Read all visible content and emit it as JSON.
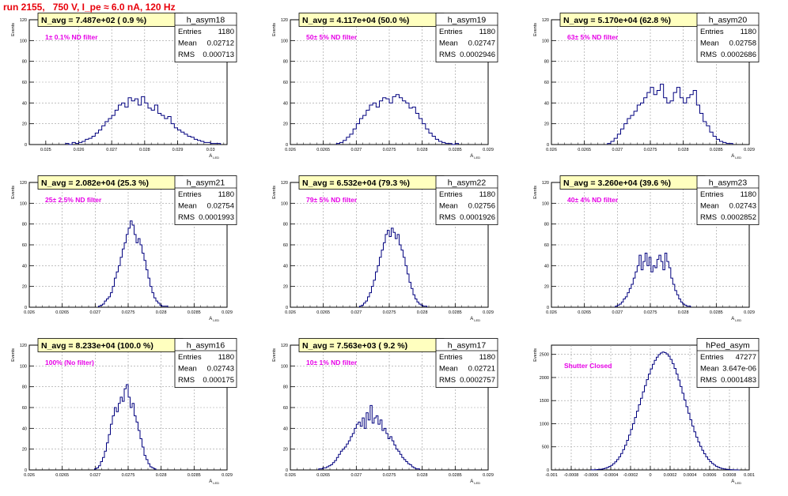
{
  "run_title": "run 2155,   750 V, I_pe ≈ 6.0 nA, 120 Hz",
  "chart_data": [
    {
      "type": "histogram",
      "name": "h_asym18",
      "navg": "N_avg = 7.487e+02 ( 0.9 %)",
      "filter": "1± 0.1% ND filter",
      "stats": {
        "entries": "1180",
        "mean": "0.02712",
        "rms": "0.000713"
      },
      "xlim": [
        0.0245,
        0.0305
      ],
      "ylim": [
        0,
        120
      ],
      "xticks": [
        0.025,
        0.026,
        0.027,
        0.028,
        0.029,
        0.03
      ],
      "xticklabels": [
        "0.025",
        "0.026",
        "0.027",
        "0.028",
        "0.029",
        "0.03"
      ],
      "yticks": [
        0,
        20,
        40,
        60,
        80,
        100,
        120
      ],
      "xlabel": "A_LED",
      "ylabel": "Events",
      "bins": {
        "start": 0.0256,
        "width": 0.0001,
        "counts": [
          1,
          0,
          2,
          1,
          2,
          3,
          5,
          6,
          8,
          11,
          14,
          18,
          22,
          25,
          28,
          33,
          38,
          40,
          36,
          45,
          42,
          44,
          38,
          46,
          40,
          35,
          33,
          38,
          30,
          28,
          25,
          27,
          20,
          16,
          14,
          12,
          10,
          8,
          7,
          5,
          4,
          3,
          2,
          2,
          1,
          1,
          1
        ]
      }
    },
    {
      "type": "histogram",
      "name": "h_asym19",
      "navg": "N_avg = 4.117e+04 (50.0 %)",
      "filter": "50± 5% ND filter",
      "stats": {
        "entries": "1180",
        "mean": "0.02747",
        "rms": "0.0002946"
      },
      "xlim": [
        0.026,
        0.029
      ],
      "ylim": [
        0,
        120
      ],
      "xticks": [
        0.026,
        0.0265,
        0.027,
        0.0275,
        0.028,
        0.0285,
        0.029
      ],
      "xticklabels": [
        "0.026",
        "0.0265",
        "0.027",
        "0.0275",
        "0.028",
        "0.0285",
        "0.029"
      ],
      "yticks": [
        0,
        20,
        40,
        60,
        80,
        100,
        120
      ],
      "xlabel": "A_LED",
      "ylabel": "Events",
      "bins": {
        "start": 0.0267,
        "width": 5e-05,
        "counts": [
          1,
          2,
          4,
          7,
          10,
          15,
          20,
          25,
          28,
          33,
          38,
          40,
          36,
          42,
          45,
          44,
          40,
          46,
          48,
          45,
          42,
          40,
          35,
          36,
          30,
          25,
          20,
          15,
          11,
          8,
          5,
          3,
          2,
          1,
          1,
          0,
          1
        ]
      }
    },
    {
      "type": "histogram",
      "name": "h_asym20",
      "navg": "N_avg = 5.170e+04 (62.8 %)",
      "filter": "63± 5% ND filter",
      "stats": {
        "entries": "1180",
        "mean": "0.02758",
        "rms": "0.0002686"
      },
      "xlim": [
        0.026,
        0.029
      ],
      "ylim": [
        0,
        120
      ],
      "xticks": [
        0.026,
        0.0265,
        0.027,
        0.0275,
        0.028,
        0.0285,
        0.029
      ],
      "xticklabels": [
        "0.026",
        "0.0265",
        "0.027",
        "0.0275",
        "0.028",
        "0.0285",
        "0.029"
      ],
      "yticks": [
        0,
        20,
        40,
        60,
        80,
        100,
        120
      ],
      "xlabel": "A_LED",
      "ylabel": "Events",
      "bins": {
        "start": 0.02685,
        "width": 5e-05,
        "counts": [
          1,
          3,
          6,
          10,
          15,
          20,
          25,
          28,
          32,
          38,
          40,
          45,
          50,
          55,
          48,
          52,
          58,
          45,
          40,
          42,
          50,
          55,
          45,
          40,
          45,
          48,
          52,
          38,
          30,
          22,
          18,
          12,
          8,
          5,
          3,
          2,
          1,
          1
        ]
      }
    },
    {
      "type": "histogram",
      "name": "h_asym21",
      "navg": "N_avg = 2.082e+04 (25.3 %)",
      "filter": "25± 2.5% ND filter",
      "stats": {
        "entries": "1180",
        "mean": "0.02754",
        "rms": "0.0001993"
      },
      "xlim": [
        0.026,
        0.029
      ],
      "ylim": [
        0,
        120
      ],
      "xticks": [
        0.026,
        0.0265,
        0.027,
        0.0275,
        0.028,
        0.0285,
        0.029
      ],
      "xticklabels": [
        "0.026",
        "0.0265",
        "0.027",
        "0.0275",
        "0.028",
        "0.0285",
        "0.029"
      ],
      "yticks": [
        0,
        20,
        40,
        60,
        80,
        100,
        120
      ],
      "xlabel": "A_LED",
      "ylabel": "Events",
      "bins": {
        "start": 0.02705,
        "width": 3e-05,
        "counts": [
          1,
          2,
          3,
          6,
          8,
          10,
          14,
          20,
          28,
          34,
          40,
          48,
          56,
          62,
          70,
          76,
          83,
          79,
          70,
          62,
          66,
          60,
          52,
          45,
          36,
          28,
          20,
          14,
          9,
          6,
          4,
          2,
          1,
          1,
          1
        ]
      }
    },
    {
      "type": "histogram",
      "name": "h_asym22",
      "navg": "N_avg = 6.532e+04 (79.3 %)",
      "filter": "79± 5% ND filter",
      "stats": {
        "entries": "1180",
        "mean": "0.02756",
        "rms": "0.0001926"
      },
      "xlim": [
        0.026,
        0.029
      ],
      "ylim": [
        0,
        120
      ],
      "xticks": [
        0.026,
        0.0265,
        0.027,
        0.0275,
        0.028,
        0.0285,
        0.029
      ],
      "xticklabels": [
        "0.026",
        "0.0265",
        "0.027",
        "0.0275",
        "0.028",
        "0.0285",
        "0.029"
      ],
      "yticks": [
        0,
        20,
        40,
        60,
        80,
        100,
        120
      ],
      "xlabel": "A_LED",
      "ylabel": "Events",
      "bins": {
        "start": 0.02705,
        "width": 3e-05,
        "counts": [
          1,
          2,
          4,
          6,
          10,
          14,
          20,
          26,
          34,
          40,
          48,
          55,
          62,
          70,
          74,
          68,
          76,
          72,
          66,
          70,
          60,
          55,
          48,
          40,
          32,
          24,
          18,
          12,
          8,
          5,
          3,
          2,
          1,
          1
        ]
      }
    },
    {
      "type": "histogram",
      "name": "h_asym23",
      "navg": "N_avg = 3.260e+04 (39.6 %)",
      "filter": "40± 4% ND filter",
      "stats": {
        "entries": "1180",
        "mean": "0.02743",
        "rms": "0.0002852"
      },
      "xlim": [
        0.026,
        0.029
      ],
      "ylim": [
        0,
        120
      ],
      "xticks": [
        0.026,
        0.0265,
        0.027,
        0.0275,
        0.028,
        0.0285,
        0.029
      ],
      "xticklabels": [
        "0.026",
        "0.0265",
        "0.027",
        "0.0275",
        "0.028",
        "0.0285",
        "0.029"
      ],
      "yticks": [
        0,
        20,
        40,
        60,
        80,
        100,
        120
      ],
      "xlabel": "A_LED",
      "ylabel": "Events",
      "bins": {
        "start": 0.02697,
        "width": 3e-05,
        "counts": [
          1,
          2,
          3,
          5,
          8,
          10,
          14,
          18,
          22,
          28,
          34,
          40,
          50,
          36,
          44,
          52,
          40,
          48,
          34,
          40,
          38,
          46,
          50,
          44,
          36,
          52,
          44,
          38,
          28,
          22,
          16,
          12,
          8,
          5,
          3,
          2,
          1,
          1
        ]
      }
    },
    {
      "type": "histogram",
      "name": "h_asym16",
      "navg": "N_avg = 8.233e+04 (100.0 %)",
      "filter": "100% (No filter)",
      "stats": {
        "entries": "1180",
        "mean": "0.02743",
        "rms": "0.000175"
      },
      "xlim": [
        0.026,
        0.029
      ],
      "ylim": [
        0,
        120
      ],
      "xticks": [
        0.026,
        0.0265,
        0.027,
        0.0275,
        0.028,
        0.0285,
        0.029
      ],
      "xticklabels": [
        "0.026",
        "0.0265",
        "0.027",
        "0.0275",
        "0.028",
        "0.0285",
        "0.029"
      ],
      "yticks": [
        0,
        20,
        40,
        60,
        80,
        100,
        120
      ],
      "xlabel": "A_LED",
      "ylabel": "Events",
      "bins": {
        "start": 0.02699,
        "width": 3e-05,
        "counts": [
          1,
          2,
          4,
          8,
          12,
          18,
          26,
          34,
          44,
          52,
          60,
          56,
          64,
          70,
          66,
          78,
          82,
          70,
          60,
          64,
          52,
          46,
          38,
          30,
          22,
          14,
          10,
          6,
          3,
          2,
          1
        ]
      }
    },
    {
      "type": "histogram",
      "name": "h_asym17",
      "navg": "N_avg = 7.563e+03 ( 9.2 %)",
      "filter": "10± 1% ND filter",
      "stats": {
        "entries": "1180",
        "mean": "0.02721",
        "rms": "0.0002757"
      },
      "xlim": [
        0.026,
        0.029
      ],
      "ylim": [
        0,
        120
      ],
      "xticks": [
        0.026,
        0.0265,
        0.027,
        0.0275,
        0.028,
        0.0285,
        0.029
      ],
      "xticklabels": [
        "0.026",
        "0.0265",
        "0.027",
        "0.0275",
        "0.028",
        "0.0285",
        "0.029"
      ],
      "yticks": [
        0,
        20,
        40,
        60,
        80,
        100,
        120
      ],
      "xlabel": "A_LED",
      "ylabel": "Events",
      "bins": {
        "start": 0.02643,
        "width": 3e-05,
        "counts": [
          1,
          1,
          2,
          2,
          3,
          4,
          5,
          7,
          9,
          12,
          15,
          18,
          20,
          22,
          25,
          28,
          32,
          35,
          40,
          44,
          46,
          42,
          50,
          40,
          55,
          48,
          62,
          45,
          50,
          52,
          44,
          48,
          38,
          40,
          35,
          30,
          32,
          28,
          24,
          20,
          18,
          15,
          12,
          10,
          8,
          6,
          5,
          3,
          2,
          1,
          1
        ]
      }
    },
    {
      "type": "histogram",
      "name": "hPed_asym",
      "navg": "",
      "filter": "Shutter Closed",
      "stats": {
        "entries": "47277",
        "mean": "3.647e-06",
        "rms": "0.0001483"
      },
      "xlim": [
        -0.001,
        0.001
      ],
      "ylim": [
        0,
        2700
      ],
      "xticks": [
        -0.001,
        -0.0008,
        -0.0006,
        -0.0004,
        -0.0002,
        0,
        0.0002,
        0.0004,
        0.0006,
        0.0008,
        0.001
      ],
      "xticklabels": [
        "-0.001",
        "-0.0008",
        "-0.0006",
        "-0.0004",
        "-0.0002",
        "0",
        "0.0002",
        "0.0004",
        "0.0006",
        "0.0008",
        "0.001"
      ],
      "yticks": [
        0,
        500,
        1000,
        1500,
        2000,
        2500
      ],
      "xlabel": "A_LED",
      "ylabel": "Events",
      "bins": {
        "start": -0.0006,
        "width": 2e-05,
        "counts": [
          2,
          3,
          5,
          8,
          12,
          18,
          26,
          38,
          55,
          75,
          100,
          135,
          175,
          225,
          285,
          355,
          440,
          535,
          640,
          755,
          875,
          1000,
          1135,
          1270,
          1410,
          1550,
          1690,
          1825,
          1955,
          2075,
          2185,
          2285,
          2370,
          2440,
          2495,
          2530,
          2550,
          2540,
          2510,
          2460,
          2390,
          2300,
          2195,
          2075,
          1945,
          1805,
          1660,
          1515,
          1370,
          1225,
          1085,
          950,
          825,
          710,
          605,
          510,
          425,
          350,
          285,
          228,
          180,
          140,
          107,
          80,
          59,
          43,
          31,
          22,
          15,
          10,
          7,
          5,
          3,
          2,
          1
        ]
      }
    }
  ]
}
